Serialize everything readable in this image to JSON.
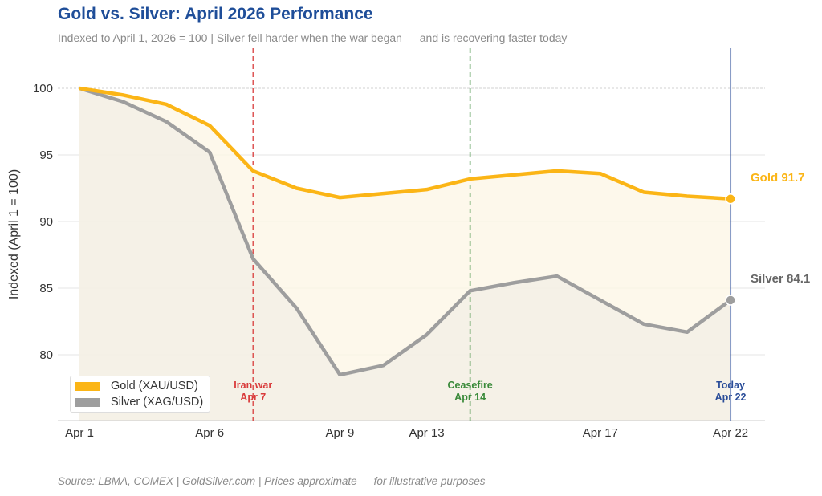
{
  "title": "Gold vs. Silver: April 2026 Performance",
  "subtitle": "Indexed to April 1, 2026 = 100  |  Silver fell harder when the war began — and is recovering faster today",
  "source": "Source: LBMA, COMEX  |  GoldSilver.com  |  Prices approximate — for illustrative purposes",
  "chart_data": {
    "type": "line",
    "ylabel": "Indexed (April 1 = 100)",
    "ylim": [
      75,
      102
    ],
    "yticks": [
      80,
      85,
      90,
      95,
      100
    ],
    "x": [
      "Apr 1",
      "Apr 2",
      "Apr 3",
      "Apr 6",
      "Apr 7",
      "Apr 8",
      "Apr 9",
      "Apr 10",
      "Apr 13",
      "Apr 14",
      "Apr 15",
      "Apr 16",
      "Apr 17",
      "Apr 20",
      "Apr 21",
      "Apr 22"
    ],
    "xtick_labels": [
      "Apr 1",
      "Apr 6",
      "Apr 9",
      "Apr 13",
      "Apr 17",
      "Apr 22"
    ],
    "grid": true,
    "legend_position": "bottom-left",
    "series": [
      {
        "name": "Gold (XAU/USD)",
        "color": "#fbb516",
        "end_label": "Gold  91.7",
        "values": [
          100,
          99.5,
          98.8,
          97.2,
          93.8,
          92.5,
          91.8,
          92.1,
          92.4,
          93.2,
          93.5,
          93.8,
          93.6,
          92.2,
          91.9,
          91.7
        ]
      },
      {
        "name": "Silver (XAG/USD)",
        "color": "#9e9e9e",
        "end_label": "Silver  84.1",
        "values": [
          100,
          99.0,
          97.5,
          95.2,
          87.2,
          83.5,
          78.5,
          79.2,
          81.5,
          84.8,
          85.4,
          85.9,
          84.1,
          82.3,
          81.7,
          84.1
        ]
      }
    ],
    "annotations": [
      {
        "x": "Apr 7",
        "line1": "Iran war",
        "line2": "Apr 7",
        "color": "#d93b3b",
        "style": "dashed"
      },
      {
        "x": "Apr 14",
        "line1": "Ceasefire",
        "line2": "Apr 14",
        "color": "#3a8a3a",
        "style": "dashed"
      },
      {
        "x": "Apr 22",
        "line1": "Today",
        "line2": "Apr 22",
        "color": "#2a4d99",
        "style": "solid"
      }
    ]
  }
}
